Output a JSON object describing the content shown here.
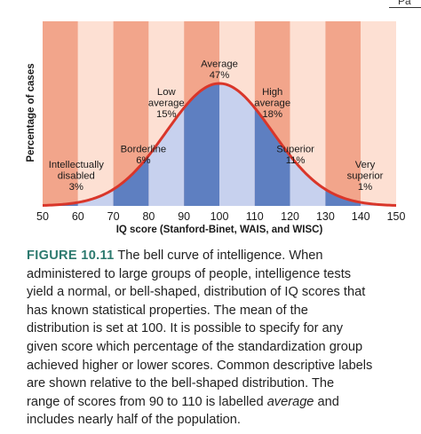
{
  "page": {
    "corner_text": "Pa"
  },
  "chart_data": {
    "type": "area",
    "title": "",
    "xlabel": "IQ score (Stanford-Binet, WAIS, and WISC)",
    "ylabel": "Percentage of cases",
    "xlim": [
      50,
      150
    ],
    "x_ticks": [
      "50",
      "60",
      "70",
      "80",
      "90",
      "100",
      "110",
      "120",
      "130",
      "140",
      "150"
    ],
    "distribution": {
      "mean": 100,
      "sd": 15
    },
    "categories": [
      {
        "id": "disabled",
        "range": [
          50,
          70
        ],
        "lines": [
          "Intellectually",
          "disabled",
          "3%"
        ],
        "percent": 3
      },
      {
        "id": "borderline",
        "range": [
          70,
          80
        ],
        "lines": [
          "Borderline",
          "6%"
        ],
        "percent": 6
      },
      {
        "id": "low-average",
        "range": [
          80,
          90
        ],
        "lines": [
          "Low",
          "average",
          "15%"
        ],
        "percent": 15
      },
      {
        "id": "average",
        "range": [
          90,
          110
        ],
        "lines": [
          "Average",
          "47%"
        ],
        "percent": 47
      },
      {
        "id": "high-average",
        "range": [
          110,
          120
        ],
        "lines": [
          "High",
          "average",
          "18%"
        ],
        "percent": 18
      },
      {
        "id": "superior",
        "range": [
          120,
          130
        ],
        "lines": [
          "Superior",
          "11%"
        ],
        "percent": 11
      },
      {
        "id": "very-superior",
        "range": [
          130,
          150
        ],
        "lines": [
          "Very",
          "superior",
          "1%"
        ],
        "percent": 1
      }
    ],
    "colors": {
      "background_dark": "#f2a58b",
      "background_light": "#fde0d3",
      "curve": "#d9362a",
      "fill_dark": "#5e7fc1",
      "fill_light": "#c7d1ee"
    },
    "grid": true
  },
  "caption": {
    "label": "FIGURE 10.11",
    "line1": "The bell curve of intelligence. When",
    "line2": "administered to large groups of people, intelligence tests",
    "line3": "yield a normal, or bell-shaped, distribution of IQ scores that",
    "line4": "has known statistical properties. The mean of the",
    "line5": "distribution is set at 100. It is possible to specify for any",
    "line6": "given score which percentage of the standardization group",
    "line7": "achieved higher or lower scores. Common descriptive labels",
    "line8": "are shown relative to the bell-shaped distribution. The",
    "line9_before": "range of scores from 90 to 110 is labelled ",
    "line9_em": "average",
    "line9_after": " and",
    "line10": "includes nearly half of the population."
  }
}
